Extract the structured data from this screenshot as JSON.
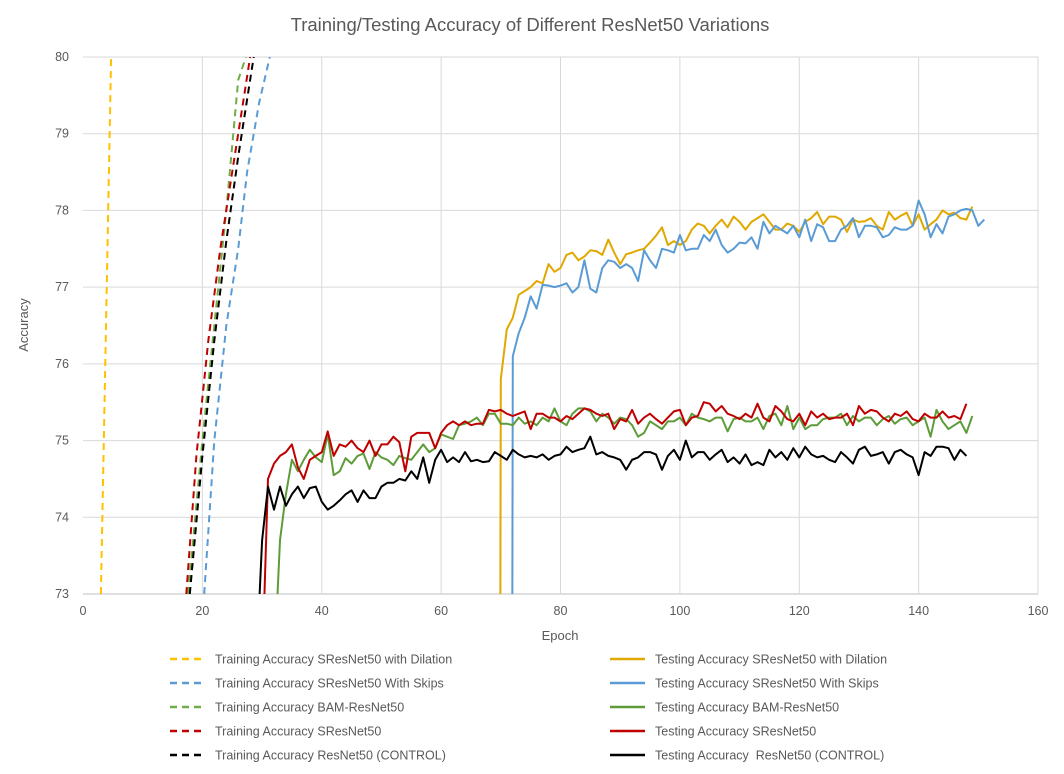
{
  "chart_data": {
    "type": "line",
    "title": "Training/Testing Accuracy of Different ResNet50 Variations",
    "xlabel": "Epoch",
    "ylabel": "Accuracy",
    "xlim": [
      0,
      160
    ],
    "ylim": [
      73,
      80
    ],
    "xticks": [
      0,
      20,
      40,
      60,
      80,
      100,
      120,
      140,
      160
    ],
    "yticks": [
      73,
      74,
      75,
      76,
      77,
      78,
      79,
      80
    ],
    "grid": true,
    "legend_position": "bottom",
    "series": [
      {
        "name": "Training Accuracy SResNet50 with Dilation",
        "color": "#FFC000",
        "dashed": true,
        "points": [
          [
            3,
            73
          ],
          [
            4.7,
            80
          ]
        ]
      },
      {
        "name": "Testing Accuracy SResNet50 with Dilation",
        "color": "#E0A800",
        "dashed": false,
        "x_start": 69.9,
        "values": [
          72.0,
          75.8,
          76.45,
          76.6,
          76.9,
          76.95,
          77.0,
          77.08,
          77.05,
          77.3,
          77.2,
          77.25,
          77.42,
          77.45,
          77.35,
          77.4,
          77.48,
          77.47,
          77.42,
          77.62,
          77.45,
          77.3,
          77.43,
          77.45,
          77.48,
          77.5,
          77.58,
          77.67,
          77.78,
          77.55,
          77.6,
          77.55,
          77.6,
          77.75,
          77.83,
          77.8,
          77.7,
          77.8,
          77.88,
          77.78,
          77.92,
          77.85,
          77.75,
          77.85,
          77.9,
          77.95,
          77.85,
          77.75,
          77.75,
          77.83,
          77.8,
          77.72,
          77.85,
          77.9,
          77.98,
          77.82,
          77.92,
          77.92,
          77.88,
          77.72,
          77.88,
          77.85,
          77.86,
          77.9,
          77.8,
          77.75,
          77.98,
          77.88,
          77.93,
          77.97,
          77.8,
          77.95,
          77.75,
          77.82,
          77.88,
          78.0,
          77.95,
          77.97,
          77.9,
          77.88,
          78.05
        ]
      },
      {
        "name": "Training Accuracy SResNet50 With Skips",
        "color": "#5B9BD5",
        "dashed": true,
        "points": [
          [
            20.3,
            73
          ],
          [
            22,
            75
          ],
          [
            24,
            76.5
          ],
          [
            26,
            77.5
          ],
          [
            27.5,
            78.5
          ],
          [
            29.5,
            79.4
          ],
          [
            31.3,
            80
          ]
        ]
      },
      {
        "name": "Testing Accuracy SResNet50 With Skips",
        "color": "#5B9BD5",
        "dashed": false,
        "x_start": 71.9,
        "values": [
          72.0,
          76.1,
          76.4,
          76.6,
          76.88,
          76.72,
          77.03,
          77.02,
          77.0,
          77.02,
          77.05,
          76.93,
          77.0,
          77.35,
          76.98,
          76.93,
          77.25,
          77.35,
          77.33,
          77.25,
          77.3,
          77.25,
          77.08,
          77.48,
          77.35,
          77.25,
          77.5,
          77.48,
          77.45,
          77.68,
          77.48,
          77.5,
          77.5,
          77.68,
          77.6,
          77.75,
          77.55,
          77.45,
          77.5,
          77.58,
          77.57,
          77.65,
          77.5,
          77.85,
          77.7,
          77.8,
          77.75,
          77.7,
          77.8,
          77.65,
          77.88,
          77.6,
          77.82,
          77.78,
          77.6,
          77.6,
          77.75,
          77.8,
          77.9,
          77.65,
          77.8,
          77.8,
          77.78,
          77.65,
          77.68,
          77.78,
          77.75,
          77.75,
          77.8,
          78.13,
          77.95,
          77.65,
          77.82,
          77.7,
          77.92,
          77.95,
          78.0,
          78.02,
          78.0,
          77.8,
          77.88
        ]
      },
      {
        "name": "Training Accuracy BAM-ResNet50",
        "color": "#70AD47",
        "dashed": true,
        "points": [
          [
            17.6,
            73
          ],
          [
            20,
            75
          ],
          [
            22,
            76.5
          ],
          [
            24,
            78
          ],
          [
            26,
            79.7
          ],
          [
            27.3,
            80
          ]
        ]
      },
      {
        "name": "Testing Accuracy BAM-ResNet50",
        "color": "#5E9C3A",
        "dashed": false,
        "x_start": 32,
        "values": [
          72.0,
          73.7,
          74.3,
          74.75,
          74.6,
          74.75,
          74.88,
          74.78,
          74.72,
          75.08,
          74.55,
          74.6,
          74.77,
          74.7,
          74.8,
          74.83,
          74.63,
          74.85,
          74.78,
          74.75,
          74.68,
          74.8,
          74.77,
          74.75,
          74.85,
          74.95,
          74.85,
          74.9,
          75.08,
          75.05,
          75.02,
          75.2,
          75.22,
          75.25,
          75.3,
          75.2,
          75.35,
          75.35,
          75.22,
          75.22,
          75.2,
          75.3,
          75.22,
          75.25,
          75.2,
          75.3,
          75.25,
          75.42,
          75.25,
          75.2,
          75.35,
          75.42,
          75.42,
          75.38,
          75.25,
          75.35,
          75.3,
          75.22,
          75.3,
          75.28,
          75.2,
          75.05,
          75.1,
          75.25,
          75.2,
          75.15,
          75.25,
          75.25,
          75.3,
          75.2,
          75.35,
          75.3,
          75.28,
          75.25,
          75.3,
          75.3,
          75.12,
          75.28,
          75.3,
          75.25,
          75.25,
          75.3,
          75.15,
          75.32,
          75.35,
          75.2,
          75.45,
          75.15,
          75.3,
          75.15,
          75.2,
          75.2,
          75.28,
          75.3,
          75.3,
          75.35,
          75.2,
          75.32,
          75.25,
          75.3,
          75.3,
          75.2,
          75.28,
          75.32,
          75.22,
          75.28,
          75.3,
          75.2,
          75.25,
          75.3,
          75.05,
          75.4,
          75.25,
          75.15,
          75.2,
          75.25,
          75.1,
          75.32
        ]
      },
      {
        "name": "Training Accuracy SResNet50",
        "color": "#C00000",
        "dashed": true,
        "points": [
          [
            17.3,
            73
          ],
          [
            19,
            74.8
          ],
          [
            21,
            76.3
          ],
          [
            23,
            77.5
          ],
          [
            25,
            78.5
          ],
          [
            27,
            79.5
          ],
          [
            28,
            80
          ]
        ]
      },
      {
        "name": "Testing Accuracy SResNet50",
        "color": "#C00000",
        "dashed": false,
        "x_start": 30,
        "values": [
          72.0,
          74.5,
          74.7,
          74.8,
          74.85,
          74.95,
          74.65,
          74.5,
          74.75,
          74.8,
          74.85,
          75.12,
          74.8,
          74.95,
          74.92,
          75.0,
          74.9,
          74.85,
          75.0,
          74.8,
          74.95,
          74.95,
          75.05,
          74.98,
          74.6,
          75.05,
          75.1,
          75.1,
          75.1,
          74.9,
          75.1,
          75.2,
          75.25,
          75.2,
          75.25,
          75.2,
          75.22,
          75.22,
          75.4,
          75.38,
          75.4,
          75.35,
          75.32,
          75.35,
          75.38,
          75.15,
          75.35,
          75.35,
          75.3,
          75.3,
          75.25,
          75.32,
          75.28,
          75.35,
          75.42,
          75.4,
          75.35,
          75.32,
          75.35,
          75.15,
          75.28,
          75.25,
          75.4,
          75.22,
          75.3,
          75.35,
          75.28,
          75.22,
          75.3,
          75.38,
          75.4,
          75.2,
          75.3,
          75.32,
          75.5,
          75.48,
          75.38,
          75.45,
          75.35,
          75.32,
          75.28,
          75.35,
          75.3,
          75.48,
          75.3,
          75.25,
          75.45,
          75.38,
          75.28,
          75.25,
          75.35,
          75.2,
          75.38,
          75.3,
          75.35,
          75.28,
          75.3,
          75.3,
          75.35,
          75.2,
          75.45,
          75.35,
          75.4,
          75.38,
          75.3,
          75.25,
          75.35,
          75.32,
          75.38,
          75.28,
          75.25,
          75.35,
          75.3,
          75.3,
          75.38,
          75.3,
          75.32,
          75.28,
          75.48
        ]
      },
      {
        "name": "Training Accuracy ResNet50 (CONTROL)",
        "color": "#000000",
        "dashed": true,
        "points": [
          [
            17.9,
            73
          ],
          [
            20,
            74.8
          ],
          [
            22,
            76.3
          ],
          [
            24,
            77.6
          ],
          [
            26,
            78.7
          ],
          [
            28.6,
            80
          ]
        ]
      },
      {
        "name": "Testing Accuracy  ResNet50 (CONTROL)",
        "color": "#000000",
        "dashed": false,
        "x_start": 29,
        "values": [
          72.0,
          73.7,
          74.4,
          74.1,
          74.4,
          74.15,
          74.3,
          74.4,
          74.25,
          74.38,
          74.4,
          74.2,
          74.1,
          74.15,
          74.22,
          74.3,
          74.35,
          74.2,
          74.35,
          74.25,
          74.25,
          74.4,
          74.45,
          74.45,
          74.5,
          74.48,
          74.6,
          74.5,
          74.78,
          74.45,
          74.75,
          74.88,
          74.72,
          74.78,
          74.72,
          74.85,
          74.73,
          74.75,
          74.72,
          74.73,
          74.85,
          74.8,
          74.75,
          74.88,
          74.82,
          74.78,
          74.8,
          74.78,
          74.82,
          74.75,
          74.8,
          74.82,
          74.92,
          74.85,
          74.88,
          74.9,
          75.05,
          74.82,
          74.85,
          74.8,
          74.78,
          74.75,
          74.62,
          74.75,
          74.78,
          74.85,
          74.85,
          74.82,
          74.62,
          74.8,
          74.88,
          74.75,
          75.0,
          74.78,
          74.85,
          74.85,
          74.75,
          74.82,
          74.88,
          74.72,
          74.78,
          74.7,
          74.82,
          74.68,
          74.72,
          74.68,
          74.88,
          74.78,
          74.85,
          74.75,
          74.9,
          74.78,
          74.92,
          74.82,
          74.78,
          74.8,
          74.75,
          74.72,
          74.85,
          74.78,
          74.7,
          74.88,
          74.92,
          74.8,
          74.82,
          74.85,
          74.7,
          74.85,
          74.88,
          74.82,
          74.78,
          74.55,
          74.85,
          74.8,
          74.92,
          74.92,
          74.9,
          74.75,
          74.88,
          74.8
        ]
      }
    ]
  }
}
